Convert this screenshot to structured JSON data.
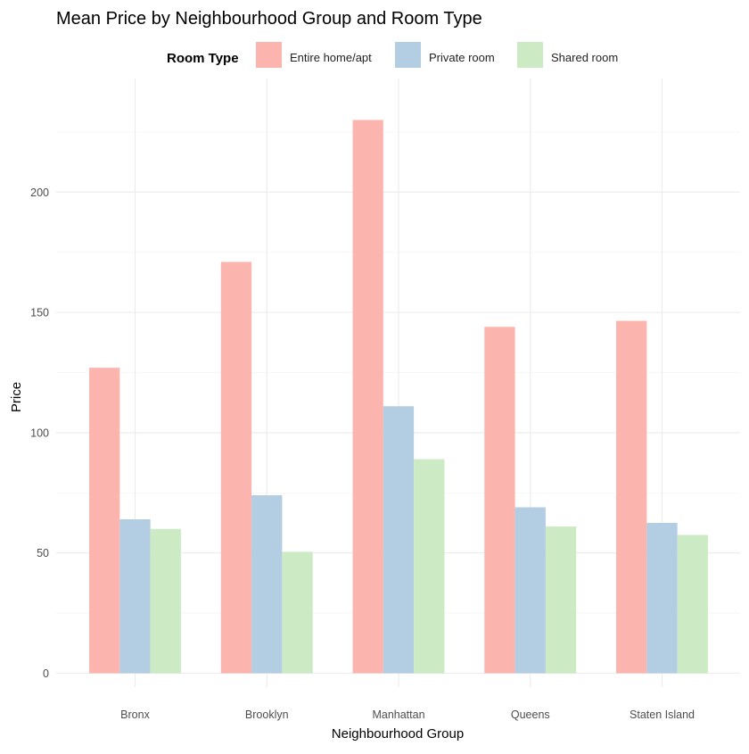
{
  "chart_data": {
    "type": "bar",
    "title": "Mean Price by Neighbourhood Group and Room Type",
    "xlabel": "Neighbourhood Group",
    "ylabel": "Price",
    "legend_title": "Room Type",
    "legend_position": "top",
    "grid": true,
    "ylim": [
      0,
      230
    ],
    "yticks": [
      0,
      50,
      100,
      150,
      200
    ],
    "categories": [
      "Bronx",
      "Brooklyn",
      "Manhattan",
      "Queens",
      "Staten Island"
    ],
    "series": [
      {
        "name": "Entire home/apt",
        "color": "#FBB4AE",
        "values": [
          127,
          171,
          230,
          144,
          146.5
        ]
      },
      {
        "name": "Private room",
        "color": "#B3CDE3",
        "values": [
          64,
          74,
          111,
          69,
          62.5
        ]
      },
      {
        "name": "Shared room",
        "color": "#CCEBC5",
        "values": [
          60,
          50.5,
          89,
          61,
          57.5
        ]
      }
    ]
  }
}
